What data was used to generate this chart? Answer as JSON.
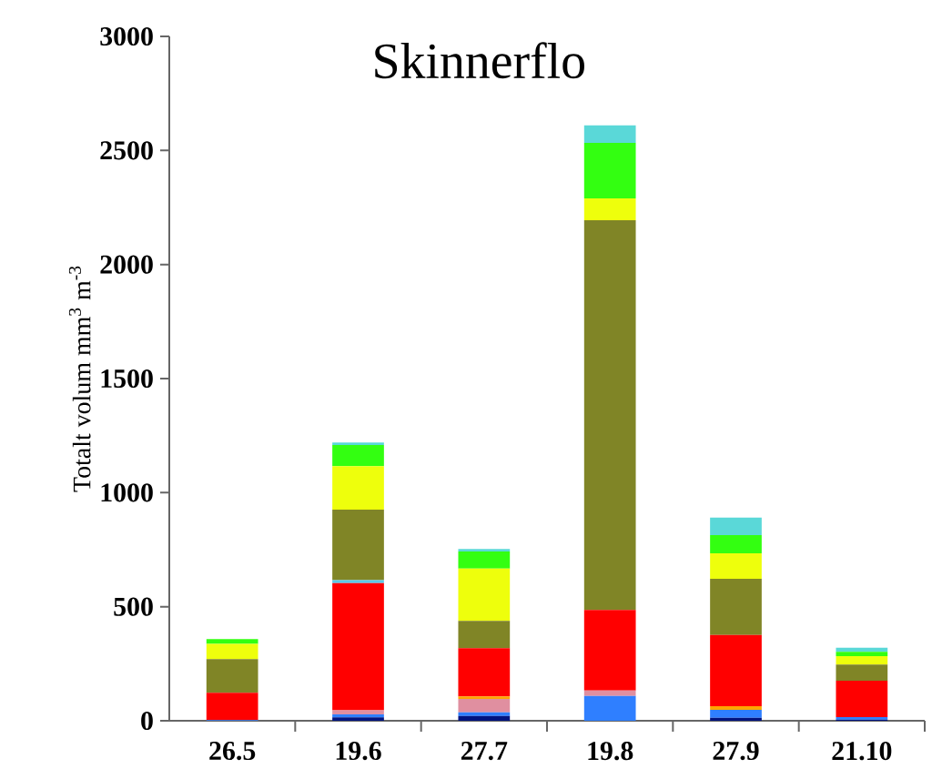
{
  "chart_data": {
    "type": "bar",
    "stacked": true,
    "title": "Skinnerflo",
    "ylabel": "Totalt volum mm$^{3}$ m$^{-3}$",
    "categories": [
      "26.5",
      "19.6",
      "27.7",
      "19.8",
      "27.9",
      "21.10"
    ],
    "series": [
      {
        "color": "#00137f",
        "values": [
          null,
          15,
          21,
          null,
          13,
          5
        ]
      },
      {
        "color": "#2f7fff",
        "values": [
          3,
          13,
          16,
          109,
          35,
          11
        ]
      },
      {
        "color": "#e08fa0",
        "values": [
          null,
          18,
          59,
          24,
          null,
          null
        ]
      },
      {
        "color": "#ffa500",
        "values": [
          null,
          null,
          11,
          null,
          16,
          null
        ]
      },
      {
        "color": "#ff0000",
        "values": [
          120,
          557,
          211,
          353,
          312,
          160
        ]
      },
      {
        "color": "#5bc8e8",
        "values": [
          null,
          13,
          null,
          null,
          null,
          null
        ]
      },
      {
        "color": "#808526",
        "values": [
          147,
          310,
          120,
          1708,
          246,
          70
        ]
      },
      {
        "color": "#eeff0c",
        "values": [
          67,
          190,
          229,
          96,
          112,
          37
        ]
      },
      {
        "color": "#33ff11",
        "values": [
          21,
          93,
          75,
          243,
          80,
          19
        ]
      },
      {
        "color": "#5ad8d8",
        "values": [
          null,
          11,
          11,
          77,
          77,
          18
        ]
      }
    ],
    "ylim": [
      0,
      3000
    ],
    "yticks": [
      0,
      500,
      1000,
      1500,
      2000,
      2500,
      3000
    ]
  }
}
